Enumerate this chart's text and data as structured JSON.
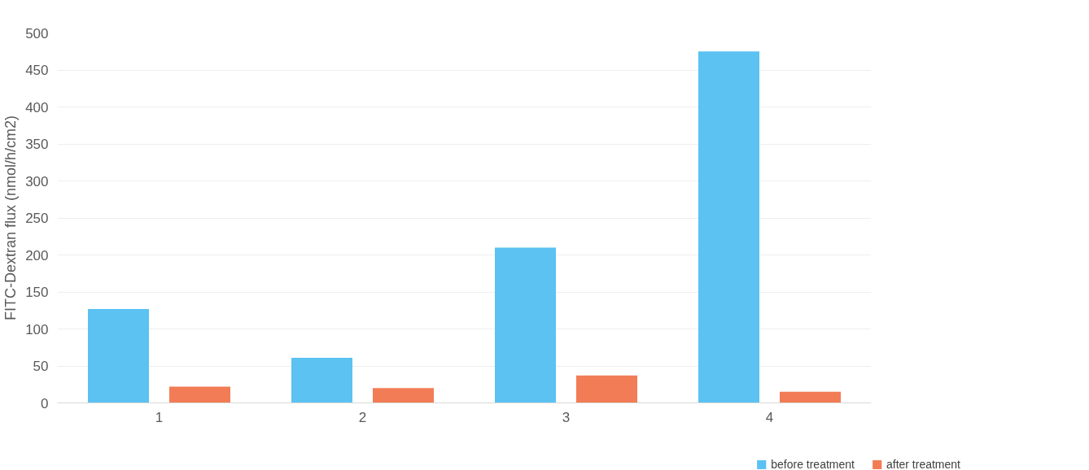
{
  "chart_data": {
    "type": "bar",
    "ylabel": "FITC-Dextran flux (nmol/h/cm2)",
    "categories": [
      "1",
      "2",
      "3",
      "4"
    ],
    "series": [
      {
        "name": "before treatment",
        "color": "#5bc2f2",
        "values": [
          127,
          61,
          210,
          475
        ]
      },
      {
        "name": "after treatment",
        "color": "#f27c55",
        "values": [
          22,
          20,
          37,
          15
        ]
      }
    ],
    "ylim": [
      0,
      500
    ],
    "yticks": [
      0,
      50,
      100,
      150,
      200,
      250,
      300,
      350,
      400,
      450,
      500
    ],
    "grid": "y",
    "legend": "bottom"
  }
}
